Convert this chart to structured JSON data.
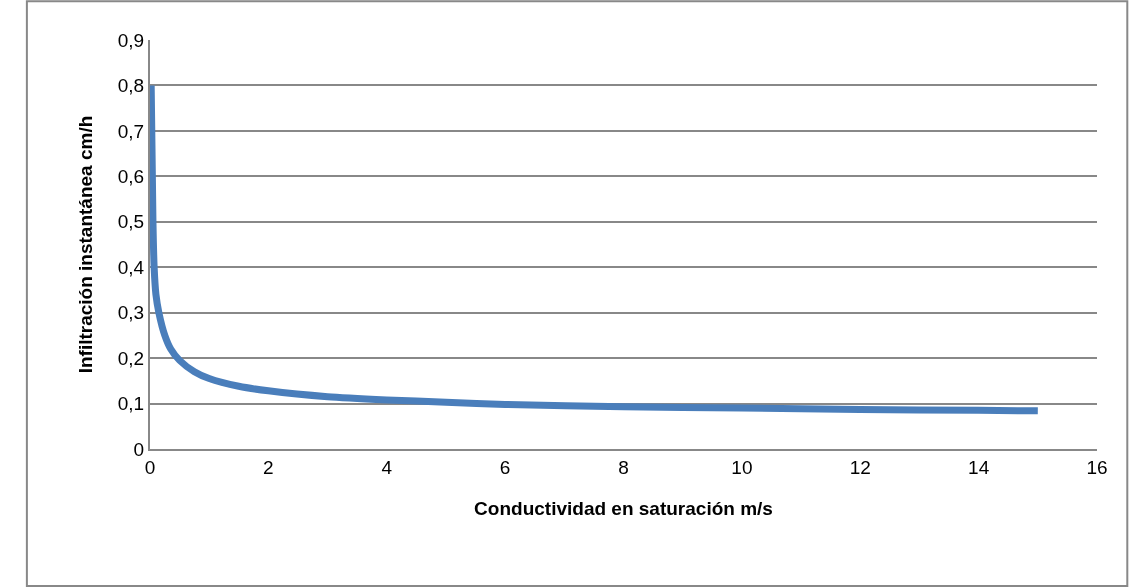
{
  "chart_data": {
    "type": "line",
    "xlabel": "Conductividad en saturación m/s",
    "ylabel": "Infiltración instantánea cm/h",
    "x": [
      0.02,
      0.05,
      0.07,
      0.1,
      0.15,
      0.25,
      0.35,
      0.5,
      0.75,
      1,
      1.5,
      2,
      3,
      4,
      5,
      6,
      8,
      10,
      12,
      14,
      15
    ],
    "series": [
      {
        "color": "#4a7ebb",
        "values": [
          0.8,
          0.5,
          0.4,
          0.34,
          0.3,
          0.25,
          0.22,
          0.195,
          0.17,
          0.155,
          0.138,
          0.128,
          0.115,
          0.108,
          0.103,
          0.098,
          0.093,
          0.09,
          0.087,
          0.085,
          0.084
        ]
      }
    ],
    "xlim": [
      0,
      16
    ],
    "xticks": [
      0,
      2,
      4,
      6,
      8,
      10,
      12,
      14,
      16
    ],
    "ylim": [
      0,
      0.9
    ],
    "yticks": [
      {
        "value": 0,
        "label": "0"
      },
      {
        "value": 0.1,
        "label": "0,1"
      },
      {
        "value": 0.2,
        "label": "0,2"
      },
      {
        "value": 0.3,
        "label": "0,3"
      },
      {
        "value": 0.4,
        "label": "0,4"
      },
      {
        "value": 0.5,
        "label": "0,5"
      },
      {
        "value": 0.6,
        "label": "0,6"
      },
      {
        "value": 0.7,
        "label": "0,7"
      },
      {
        "value": 0.8,
        "label": "0,8"
      },
      {
        "value": 0.9,
        "label": "0,9"
      }
    ],
    "grid": "y",
    "marker": "none",
    "line_style": "solid"
  }
}
